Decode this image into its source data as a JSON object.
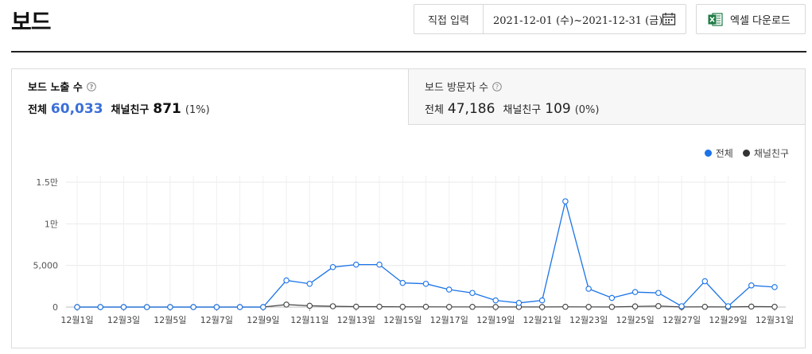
{
  "page": {
    "title": "보드"
  },
  "date_filter": {
    "direct_input_label": "직접 입력",
    "range_text": "2021-12-01 (수)~2021-12-31 (금)",
    "calendar_icon": "calendar-icon"
  },
  "excel_button": {
    "label": "엑셀 다운로드",
    "icon": "excel-icon"
  },
  "tabs": [
    {
      "label": "보드 노출 수",
      "total_label": "전체",
      "total_value": "60,033",
      "friend_label": "채널친구",
      "friend_value": "871",
      "friend_pct": "(1%)"
    },
    {
      "label": "보드 방문자 수",
      "total_label": "전체",
      "total_value": "47,186",
      "friend_label": "채널친구",
      "friend_value": "109",
      "friend_pct": "(0%)"
    }
  ],
  "colors": {
    "total": "#3d7fdf",
    "friend": "#444444",
    "accent": "#3b6fd8"
  },
  "chart_data": {
    "type": "line",
    "x": [
      "12월1일",
      "12월2일",
      "12월3일",
      "12월4일",
      "12월5일",
      "12월6일",
      "12월7일",
      "12월8일",
      "12월9일",
      "12월10일",
      "12월11일",
      "12월12일",
      "12월13일",
      "12월14일",
      "12월15일",
      "12월16일",
      "12월17일",
      "12월18일",
      "12월19일",
      "12월20일",
      "12월21일",
      "12월22일",
      "12월23일",
      "12월24일",
      "12월25일",
      "12월26일",
      "12월27일",
      "12월28일",
      "12월29일",
      "12월30일",
      "12월31일"
    ],
    "x_tick_labels": [
      "12월1일",
      "12월3일",
      "12월5일",
      "12월7일",
      "12월9일",
      "12월11일",
      "12월13일",
      "12월15일",
      "12월17일",
      "12월19일",
      "12월21일",
      "12월23일",
      "12월25일",
      "12월27일",
      "12월29일",
      "12월31일"
    ],
    "y_tick_labels": [
      "0",
      "5,000",
      "1만",
      "1.5만"
    ],
    "y_ticks": [
      0,
      5000,
      10000,
      15000
    ],
    "ylim": [
      0,
      15000
    ],
    "grid": true,
    "legend_position": "top-right",
    "series": [
      {
        "name": "전체",
        "values": [
          0,
          0,
          0,
          0,
          0,
          0,
          0,
          0,
          0,
          3200,
          2800,
          4800,
          5100,
          5100,
          2900,
          2800,
          2100,
          1700,
          800,
          500,
          800,
          12700,
          2200,
          1100,
          1800,
          1700,
          100,
          3100,
          100,
          2600,
          2400
        ]
      },
      {
        "name": "채널친구",
        "values": [
          0,
          0,
          0,
          0,
          0,
          0,
          0,
          0,
          0,
          300,
          150,
          100,
          50,
          50,
          30,
          30,
          20,
          20,
          10,
          10,
          10,
          30,
          20,
          10,
          80,
          120,
          10,
          30,
          10,
          60,
          40
        ]
      }
    ]
  }
}
